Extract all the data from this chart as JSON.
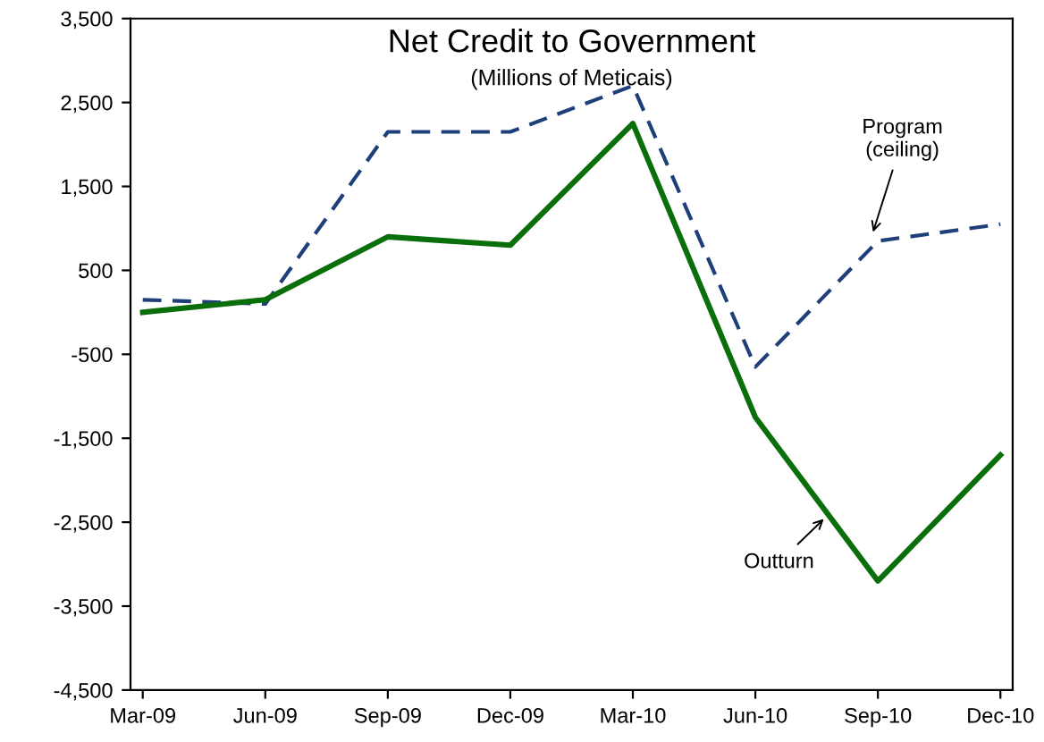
{
  "chart_data": {
    "type": "line",
    "title": "Net Credit to Government",
    "subtitle": "(Millions of Meticais)",
    "categories": [
      "Mar-09",
      "Jun-09",
      "Sep-09",
      "Dec-09",
      "Mar-10",
      "Jun-10",
      "Sep-10",
      "Dec-10"
    ],
    "series": [
      {
        "color": "#1f3f7a",
        "line_style": "dashed",
        "values": [
          150,
          100,
          2150,
          2150,
          2700,
          -650,
          850,
          1050
        ]
      },
      {
        "color": "#0a6e0a",
        "line_style": "solid",
        "values": [
          0,
          150,
          900,
          800,
          2250,
          -1250,
          -3200,
          -1700
        ]
      }
    ],
    "annotations": [
      "Program\n(ceiling)",
      "Outturn"
    ],
    "ylim": [
      -4500,
      3500
    ],
    "yticks": [
      {
        "value": -4500,
        "label": "-4,500"
      },
      {
        "value": -3500,
        "label": "-3,500"
      },
      {
        "value": -2500,
        "label": "-2,500"
      },
      {
        "value": -1500,
        "label": "-1,500"
      },
      {
        "value": -500,
        "label": "-500"
      },
      {
        "value": 500,
        "label": "500"
      },
      {
        "value": 1500,
        "label": "1,500"
      },
      {
        "value": 2500,
        "label": "2,500"
      },
      {
        "value": 3500,
        "label": "3,500"
      }
    ],
    "grid": false,
    "legend": false,
    "marker": "none"
  }
}
